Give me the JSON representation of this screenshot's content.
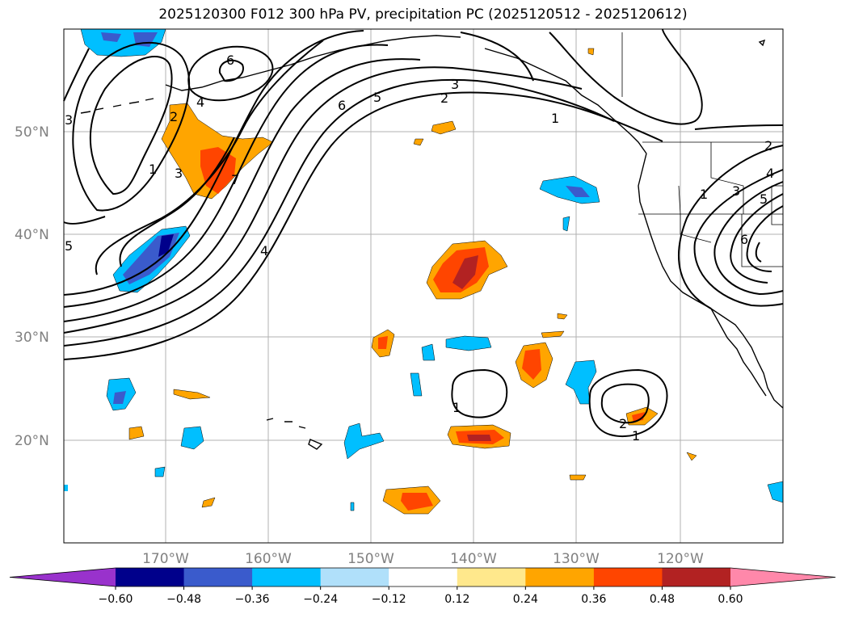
{
  "title": "2025120300 F012 300 hPa PV, precipitation PC (2025120512 - 2025120612)",
  "map": {
    "lon_labels": [
      "170°W",
      "160°W",
      "150°W",
      "140°W",
      "130°W",
      "120°W"
    ],
    "lat_labels": [
      "50°N",
      "40°N",
      "30°N",
      "20°N"
    ],
    "pv_contour_labels": [
      "1",
      "2",
      "3",
      "4",
      "5",
      "6",
      "7"
    ],
    "gridlines": true,
    "contour_color": "#000000"
  },
  "colorbar": {
    "ticks": [
      "−0.60",
      "−0.48",
      "−0.36",
      "−0.24",
      "−0.12",
      "0.12",
      "0.24",
      "0.36",
      "0.48",
      "0.60"
    ],
    "colors": [
      "#9932cc",
      "#00008b",
      "#3a5bcc",
      "#00bfff",
      "#b0e0fa",
      "#ffffff",
      "#ffe88c",
      "#ffa500",
      "#ff4500",
      "#b22222",
      "#ff88aa"
    ],
    "extend": "both"
  }
}
